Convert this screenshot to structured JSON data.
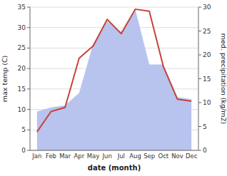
{
  "chart_data": {
    "type": "line",
    "xlabel": "date (month)",
    "ylabel": "max temp (C)",
    "y2label": "med. precipitation (kg/m2)",
    "categories": [
      "Jan",
      "Feb",
      "Mar",
      "Apr",
      "May",
      "Jun",
      "Jul",
      "Aug",
      "Sep",
      "Oct",
      "Nov",
      "Dec"
    ],
    "series": [
      {
        "type": "area",
        "color": "#b8c4ee",
        "values": [
          9.5,
          10.5,
          11.0,
          14.0,
          26.0,
          31.5,
          29.0,
          34.5,
          21.0,
          21.0,
          13.0,
          12.5
        ]
      },
      {
        "type": "line",
        "color": "#c8413a",
        "values": [
          4.5,
          9.5,
          10.5,
          22.5,
          25.5,
          32.0,
          28.5,
          34.5,
          34.0,
          20.5,
          12.5,
          12.0
        ]
      }
    ],
    "ylim": [
      0,
      35
    ],
    "yticks": [
      0,
      5,
      10,
      15,
      20,
      25,
      30,
      35
    ],
    "y2lim": [
      0,
      30
    ],
    "y2ticks": [
      0,
      5,
      10,
      15,
      20,
      25,
      30
    ],
    "grid": true
  }
}
